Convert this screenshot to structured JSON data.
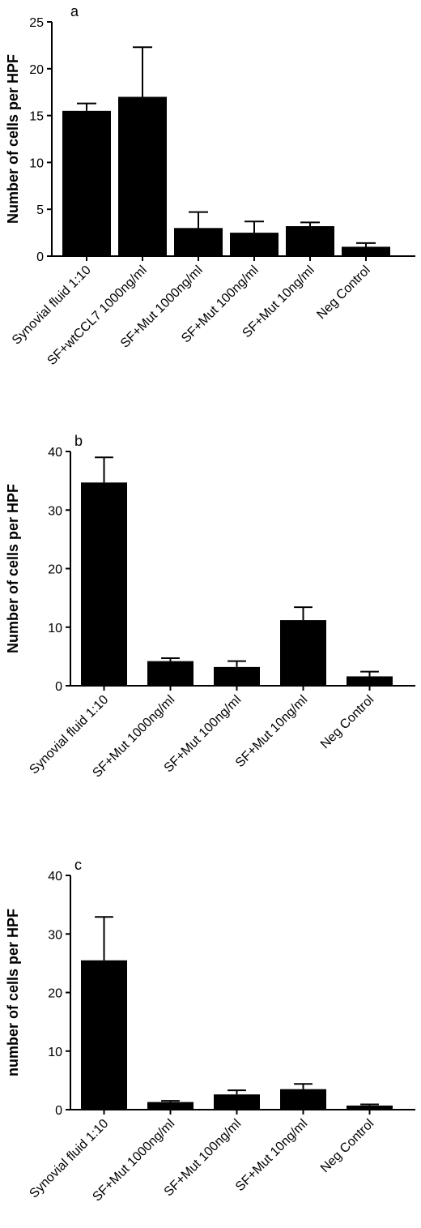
{
  "chart_data": [
    {
      "type": "bar",
      "panel_label": "a",
      "ylabel": "Number of cells per HPF",
      "ylim": [
        0,
        25
      ],
      "yticks": [
        0,
        5,
        10,
        15,
        20,
        25
      ],
      "categories": [
        "Synovial fluid 1:10",
        "SF+wtCCL7 1000ng/ml",
        "SF+Mut 1000ng/ml",
        "SF+Mut 100ng/ml",
        "SF+Mut 10ng/ml",
        "Neg Control"
      ],
      "values": [
        15.5,
        17.0,
        3.0,
        2.5,
        3.2,
        1.0
      ],
      "errors": [
        0.8,
        5.3,
        1.7,
        1.2,
        0.4,
        0.4
      ]
    },
    {
      "type": "bar",
      "panel_label": "b",
      "ylabel": "Number of cells per HPF",
      "ylim": [
        0,
        40
      ],
      "yticks": [
        0,
        10,
        20,
        30,
        40
      ],
      "categories": [
        "Synovial fluid 1:10",
        "SF+Mut 1000ng/ml",
        "SF+Mut 100ng/ml",
        "SF+Mut 10ng/ml",
        "Neg Control"
      ],
      "values": [
        34.7,
        4.2,
        3.2,
        11.2,
        1.6
      ],
      "errors": [
        4.3,
        0.5,
        1.0,
        2.2,
        0.8
      ]
    },
    {
      "type": "bar",
      "panel_label": "c",
      "ylabel": "number of cells per HPF",
      "ylim": [
        0,
        40
      ],
      "yticks": [
        0,
        10,
        20,
        30,
        40
      ],
      "categories": [
        "Synovial fluid 1:10",
        "SF+Mut 1000ng/ml",
        "SF+Mut 100ng/ml",
        "SF+Mut 10ng/ml",
        "Neg Control"
      ],
      "values": [
        25.5,
        1.3,
        2.6,
        3.5,
        0.7
      ],
      "errors": [
        7.4,
        0.2,
        0.7,
        0.9,
        0.2
      ]
    }
  ]
}
